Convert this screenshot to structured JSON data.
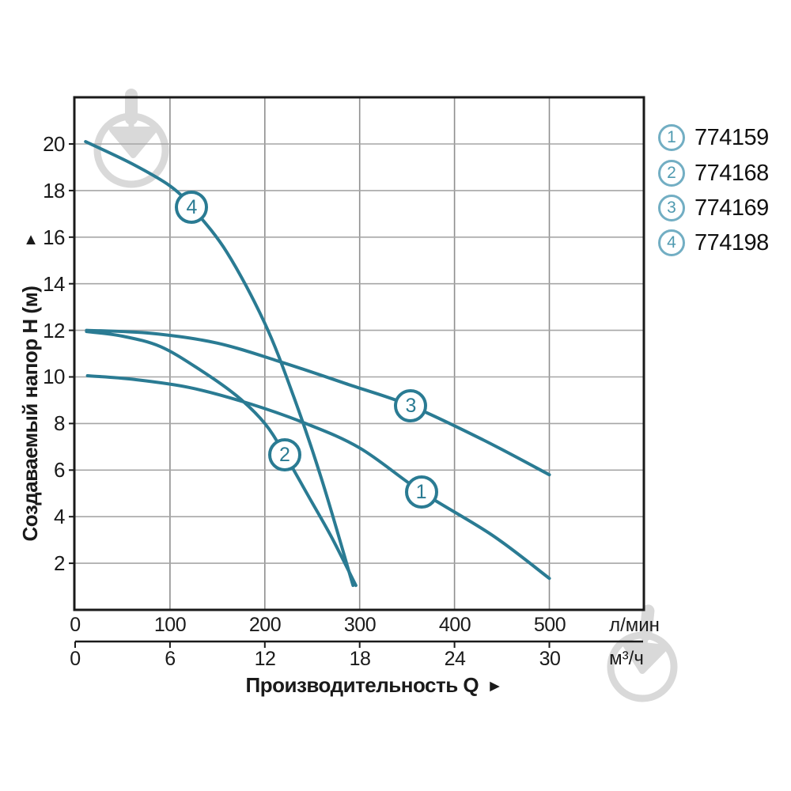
{
  "colors": {
    "curve": "#2a7b93",
    "legend_circle": "#72aec3",
    "legend_number": "#4f9ab0",
    "grid_vertical": "#8f8f8f",
    "grid_horizontal": "#a6a6a6",
    "plot_border": "#1a1a1a",
    "watermark": "#d9d9d9",
    "text": "#1a1a1a"
  },
  "y_axis": {
    "title": "Создаваемый напор H (м)",
    "arrow": "▲",
    "ticks": [
      "20",
      "18",
      "16",
      "14",
      "12",
      "10",
      "8",
      "6",
      "4",
      "2"
    ]
  },
  "x_axis": {
    "title": "Производительность Q",
    "arrow": "►",
    "primary": {
      "ticks": [
        "0",
        "100",
        "200",
        "300",
        "400",
        "500"
      ],
      "unit": "л/мин"
    },
    "secondary": {
      "ticks": [
        "0",
        "6",
        "12",
        "18",
        "24",
        "30"
      ],
      "unit": "м³/ч"
    }
  },
  "legend": {
    "items": [
      {
        "marker": "1",
        "code": "774159"
      },
      {
        "marker": "2",
        "code": "774168"
      },
      {
        "marker": "3",
        "code": "774169"
      },
      {
        "marker": "4",
        "code": "774198"
      }
    ]
  },
  "watermark": {
    "name": "epicentr-trowel-logo",
    "count": 2
  },
  "chart_data": {
    "type": "line",
    "title": "",
    "xlabel": "Производительность Q",
    "ylabel": "Создаваемый напор H (м)",
    "x_unit_primary": "л/мин",
    "x_unit_secondary": "м³/ч",
    "x_range_lmin": [
      0,
      600
    ],
    "x_ticks_lmin": [
      0,
      100,
      200,
      300,
      400,
      500
    ],
    "x_ticks_m3h": [
      0,
      6,
      12,
      18,
      24,
      30
    ],
    "y_range_m": [
      0,
      22
    ],
    "y_ticks_m": [
      2,
      4,
      6,
      8,
      10,
      12,
      14,
      16,
      18,
      20
    ],
    "grid": true,
    "legend_position": "top-right-outside",
    "series": [
      {
        "name": "774159",
        "marker": "1",
        "marker_at": {
          "q": 365,
          "H": 5.07
        },
        "points_q_H": [
          [
            13,
            10.05
          ],
          [
            60,
            9.9
          ],
          [
            120,
            9.55
          ],
          [
            180,
            8.9
          ],
          [
            240,
            8.05
          ],
          [
            300,
            6.95
          ],
          [
            365,
            5.07
          ],
          [
            440,
            3.2
          ],
          [
            500,
            1.35
          ]
        ]
      },
      {
        "name": "774168",
        "marker": "2",
        "marker_at": {
          "q": 221,
          "H": 6.67
        },
        "points_q_H": [
          [
            12,
            11.95
          ],
          [
            50,
            11.75
          ],
          [
            90,
            11.3
          ],
          [
            130,
            10.35
          ],
          [
            170,
            9.2
          ],
          [
            200,
            8.0
          ],
          [
            221,
            6.67
          ],
          [
            245,
            4.95
          ],
          [
            270,
            3.15
          ],
          [
            296,
            1.05
          ]
        ]
      },
      {
        "name": "774169",
        "marker": "3",
        "marker_at": {
          "q": 354,
          "H": 8.76
        },
        "points_q_H": [
          [
            12,
            12.0
          ],
          [
            80,
            11.87
          ],
          [
            150,
            11.45
          ],
          [
            220,
            10.6
          ],
          [
            290,
            9.65
          ],
          [
            354,
            8.76
          ],
          [
            430,
            7.3
          ],
          [
            500,
            5.8
          ]
        ]
      },
      {
        "name": "774198",
        "marker": "4",
        "marker_at": {
          "q": 123,
          "H": 17.28
        },
        "points_q_H": [
          [
            11,
            20.1
          ],
          [
            60,
            19.15
          ],
          [
            100,
            18.2
          ],
          [
            123,
            17.28
          ],
          [
            160,
            15.35
          ],
          [
            200,
            12.3
          ],
          [
            230,
            9.2
          ],
          [
            260,
            5.6
          ],
          [
            293,
            1.05
          ]
        ]
      }
    ]
  }
}
